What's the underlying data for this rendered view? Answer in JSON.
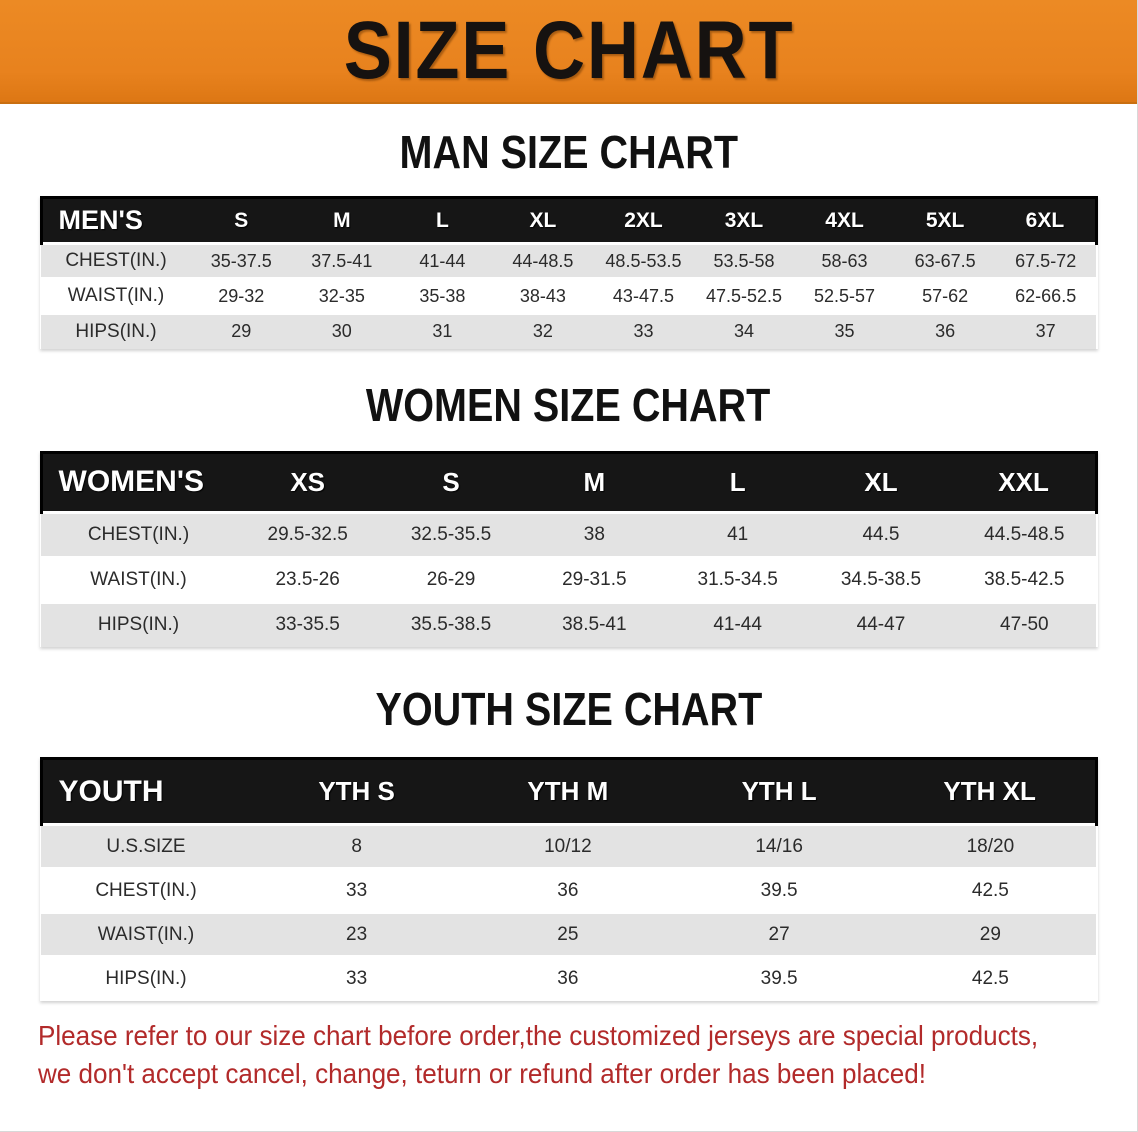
{
  "banner": {
    "title": "SIZE CHART",
    "bg_color": "#e8821e",
    "text_color": "#161210"
  },
  "sections": [
    {
      "id": "men",
      "heading": "MAN SIZE CHART",
      "table": {
        "header_label": "MEN'S",
        "columns": [
          "S",
          "M",
          "L",
          "XL",
          "2XL",
          "3XL",
          "4XL",
          "5XL",
          "6XL"
        ],
        "rows": [
          {
            "label": "CHEST(IN.)",
            "values": [
              "35-37.5",
              "37.5-41",
              "41-44",
              "44-48.5",
              "48.5-53.5",
              "53.5-58",
              "58-63",
              "63-67.5",
              "67.5-72"
            ]
          },
          {
            "label": "WAIST(IN.)",
            "values": [
              "29-32",
              "32-35",
              "35-38",
              "38-43",
              "43-47.5",
              "47.5-52.5",
              "52.5-57",
              "57-62",
              "62-66.5"
            ]
          },
          {
            "label": "HIPS(IN.)",
            "values": [
              "29",
              "30",
              "31",
              "32",
              "33",
              "34",
              "35",
              "36",
              "37"
            ]
          }
        ]
      }
    },
    {
      "id": "women",
      "heading": "WOMEN SIZE CHART",
      "table": {
        "header_label": "WOMEN'S",
        "columns": [
          "XS",
          "S",
          "M",
          "L",
          "XL",
          "XXL"
        ],
        "rows": [
          {
            "label": "CHEST(IN.)",
            "values": [
              "29.5-32.5",
              "32.5-35.5",
              "38",
              "41",
              "44.5",
              "44.5-48.5"
            ]
          },
          {
            "label": "WAIST(IN.)",
            "values": [
              "23.5-26",
              "26-29",
              "29-31.5",
              "31.5-34.5",
              "34.5-38.5",
              "38.5-42.5"
            ]
          },
          {
            "label": "HIPS(IN.)",
            "values": [
              "33-35.5",
              "35.5-38.5",
              "38.5-41",
              "41-44",
              "44-47",
              "47-50"
            ]
          }
        ]
      }
    },
    {
      "id": "youth",
      "heading": "YOUTH SIZE CHART",
      "table": {
        "header_label": "YOUTH",
        "columns": [
          "YTH S",
          "YTH M",
          "YTH L",
          "YTH XL"
        ],
        "rows": [
          {
            "label": "U.S.SIZE",
            "values": [
              "8",
              "10/12",
              "14/16",
              "18/20"
            ]
          },
          {
            "label": "CHEST(IN.)",
            "values": [
              "33",
              "36",
              "39.5",
              "42.5"
            ]
          },
          {
            "label": "WAIST(IN.)",
            "values": [
              "23",
              "25",
              "27",
              "29"
            ]
          },
          {
            "label": "HIPS(IN.)",
            "values": [
              "33",
              "36",
              "39.5",
              "42.5"
            ]
          }
        ]
      }
    }
  ],
  "disclaimer": {
    "lines": [
      "Please refer to our size chart before order,the customized jerseys are special products,",
      "we don't accept cancel, change, teturn or refund after order has been placed!"
    ],
    "color": "#b22a2a"
  },
  "colors": {
    "banner_orange": "#e8821e",
    "table_header_bar": "#161616",
    "row_stripe_gray": "#e3e3e3",
    "disclaimer_red": "#b22a2a"
  }
}
